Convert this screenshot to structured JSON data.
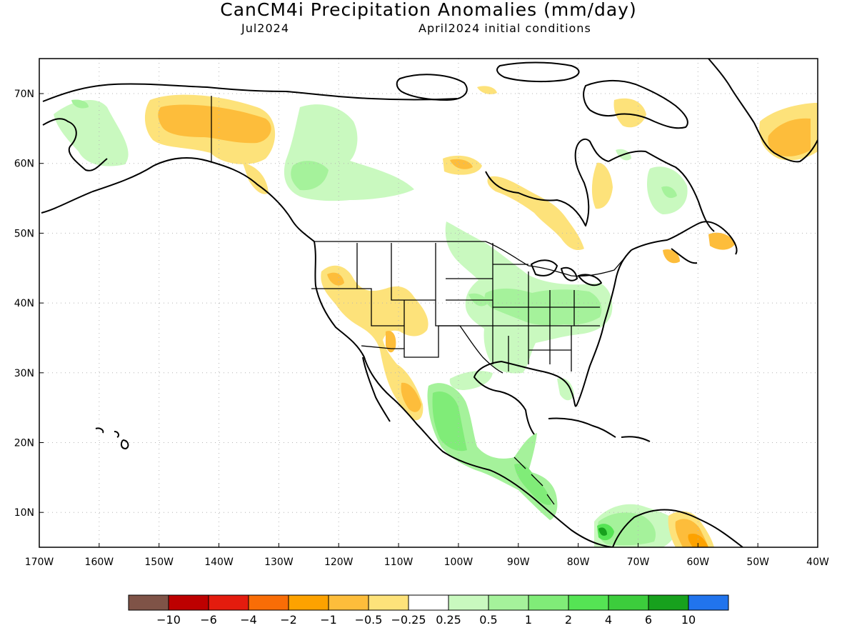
{
  "title": "CanCM4i Precipitation Anomalies (mm/day)",
  "subtitle_left": "Jul2024",
  "subtitle_right": "April2024 initial conditions",
  "lat_labels": [
    "70N",
    "60N",
    "50N",
    "40N",
    "30N",
    "20N",
    "10N"
  ],
  "lon_labels": [
    "170W",
    "160W",
    "150W",
    "140W",
    "130W",
    "120W",
    "110W",
    "100W",
    "90W",
    "80W",
    "70W",
    "60W",
    "50W",
    "40W"
  ],
  "colorbar": {
    "colors": [
      "#7f5347",
      "#bd0000",
      "#e41c0e",
      "#f96d06",
      "#fda200",
      "#fdbd3b",
      "#fde27a",
      "#ffffff",
      "#c9f9bf",
      "#a5f29b",
      "#80ec78",
      "#55e454",
      "#3ccd3c",
      "#17a11d",
      "#2174ed"
    ],
    "labels": [
      "−10",
      "−6",
      "−4",
      "−2",
      "−1",
      "−0.5",
      "−0.25",
      "0.25",
      "0.5",
      "1",
      "2",
      "4",
      "6",
      "10"
    ]
  },
  "legend_colors": {
    "dry_light": "#fde27a",
    "dry_mid": "#fdbd3b",
    "dry_strong": "#fda200",
    "dry_heavy": "#f96d06",
    "wet_light": "#c9f9bf",
    "wet_mid": "#a5f29b",
    "wet_strong": "#80ec78",
    "wet_heavy": "#3ccd3c",
    "wet_extreme": "#17a11d"
  }
}
